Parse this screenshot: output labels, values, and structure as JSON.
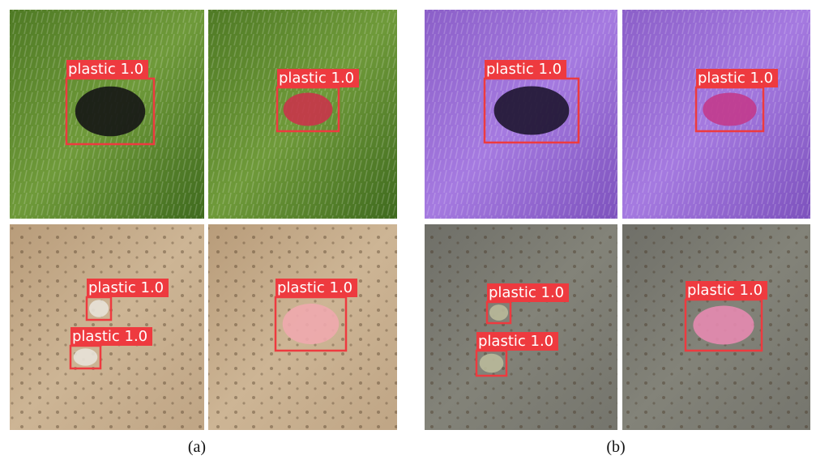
{
  "panels": [
    {
      "caption": "(a)",
      "images": [
        {
          "detections": [
            "plastic 1.0"
          ]
        },
        {
          "detections": [
            "plastic 1.0"
          ]
        },
        {
          "detections": [
            "plastic 1.0",
            "plastic 1.0"
          ]
        },
        {
          "detections": [
            "plastic 1.0"
          ]
        }
      ]
    },
    {
      "caption": "(b)",
      "images": [
        {
          "detections": [
            "plastic 1.0"
          ]
        },
        {
          "detections": [
            "plastic 1.0"
          ]
        },
        {
          "detections": [
            "plastic 1.0",
            "plastic 1.0"
          ]
        },
        {
          "detections": [
            "plastic 1.0"
          ]
        }
      ]
    }
  ]
}
